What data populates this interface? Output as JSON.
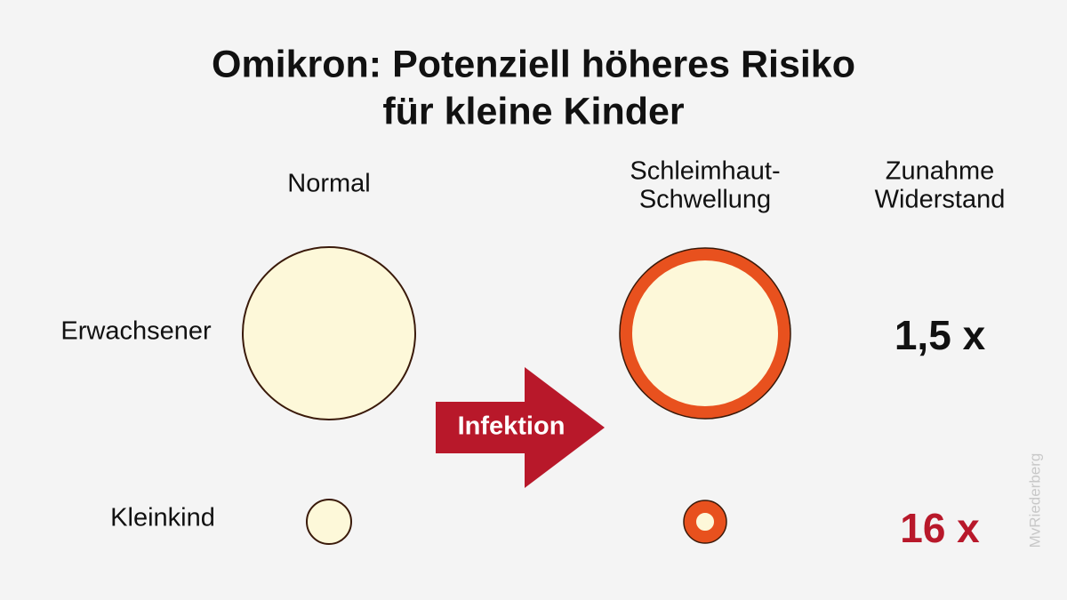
{
  "title": {
    "lines": [
      "Omikron: Potenziell höheres Risiko",
      "für kleine Kinder"
    ]
  },
  "columns": [
    {
      "lines": [
        "Normal"
      ]
    },
    {
      "lines": [
        "Schleimhaut-",
        "Schwellung"
      ]
    },
    {
      "lines": [
        "Zunahme",
        "Widerstand"
      ]
    }
  ],
  "rows": [
    {
      "label": "Erwachsener",
      "increase": "1,5 x"
    },
    {
      "label": "Kleinkind",
      "increase": "16 x"
    }
  ],
  "arrow": {
    "label": "Infektion"
  },
  "credit": "MvRiederberg"
}
